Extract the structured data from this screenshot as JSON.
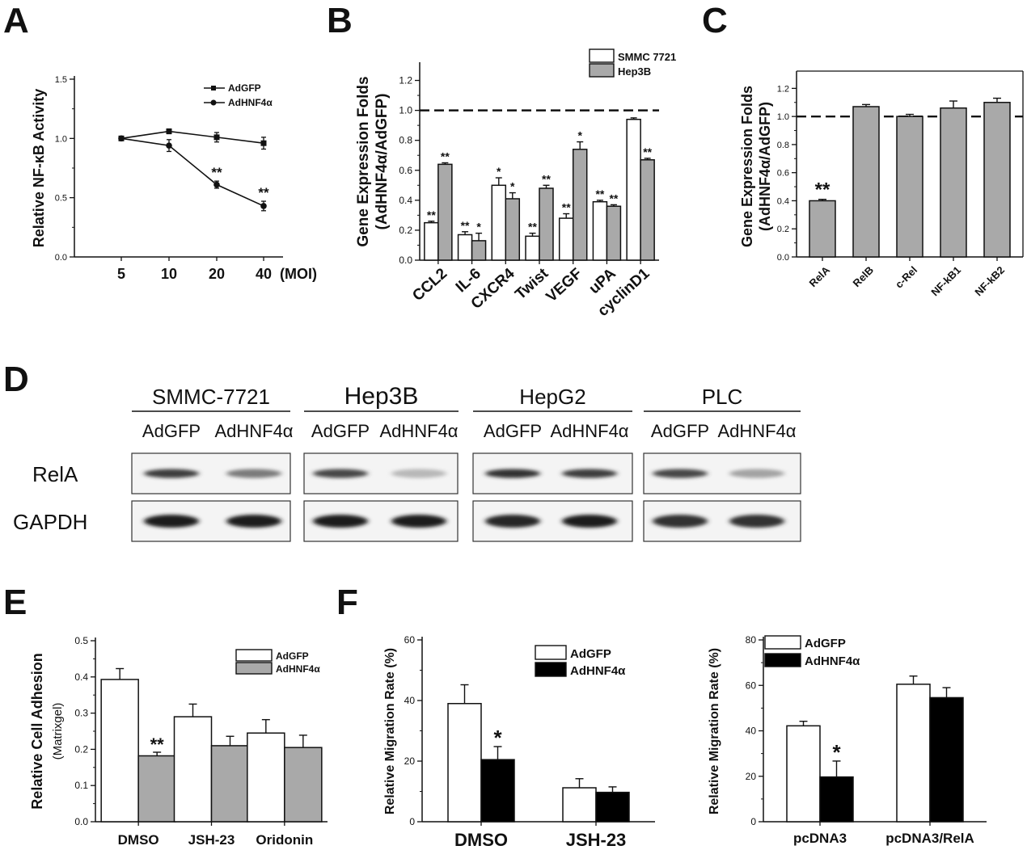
{
  "panel_labels": {
    "A": "A",
    "B": "B",
    "C": "C",
    "D": "D",
    "E": "E",
    "F": "F"
  },
  "chart_data": [
    {
      "panel": "A",
      "type": "line",
      "xlabel": "",
      "ylabel": "Relative NF-κB Activity",
      "x_unit": "(MOI)",
      "categories": [
        "5",
        "10",
        "20",
        "40"
      ],
      "yticks": [
        "0.0",
        "0.5",
        "1.0",
        "1.5"
      ],
      "ylim": [
        0,
        1.5
      ],
      "legend_position": "top-right",
      "series": [
        {
          "name": "AdGFP",
          "marker": "square",
          "values": [
            1.0,
            1.06,
            1.01,
            0.96
          ],
          "errors": [
            0.015,
            0.02,
            0.04,
            0.05
          ],
          "stars": [
            "",
            "",
            "",
            ""
          ]
        },
        {
          "name": "AdHNF4α",
          "marker": "circle",
          "values": [
            1.0,
            0.94,
            0.61,
            0.43
          ],
          "errors": [
            0.015,
            0.05,
            0.03,
            0.04
          ],
          "stars": [
            "",
            "",
            "**",
            "**"
          ]
        }
      ]
    },
    {
      "panel": "B",
      "type": "bar",
      "ylabel_line1": "Gene Expression Folds",
      "ylabel_line2": "(AdHNF4α/AdGFP)",
      "categories": [
        "CCL2",
        "IL-6",
        "CXCR4",
        "Twist",
        "VEGF",
        "uPA",
        "cyclinD1"
      ],
      "yticks": [
        "0.0",
        "0.2",
        "0.4",
        "0.6",
        "0.8",
        "1.0",
        "1.2"
      ],
      "ylim": [
        0,
        1.3
      ],
      "reference_line": 1.0,
      "legend_position": "top-right",
      "series": [
        {
          "name": "SMMC 7721",
          "color": "#ffffff",
          "values": [
            0.25,
            0.17,
            0.5,
            0.16,
            0.28,
            0.39,
            0.94
          ],
          "errors": [
            0.01,
            0.02,
            0.05,
            0.02,
            0.03,
            0.01,
            0.01
          ],
          "stars": [
            "**",
            "**",
            "*",
            "**",
            "**",
            "**",
            ""
          ]
        },
        {
          "name": "Hep3B",
          "color": "#a9a9a9",
          "values": [
            0.64,
            0.13,
            0.41,
            0.48,
            0.74,
            0.36,
            0.67
          ],
          "errors": [
            0.01,
            0.05,
            0.04,
            0.02,
            0.05,
            0.01,
            0.01
          ],
          "stars": [
            "**",
            "*",
            "*",
            "**",
            "*",
            "**",
            "**"
          ]
        }
      ]
    },
    {
      "panel": "C",
      "type": "bar",
      "ylabel_line1": "Gene Expression Folds",
      "ylabel_line2": "(AdHNF4α/AdGFP)",
      "categories": [
        "RelA",
        "RelB",
        "c-Rel",
        "NF-kB1",
        "NF-kB2"
      ],
      "yticks": [
        "0.0",
        "0.2",
        "0.4",
        "0.6",
        "0.8",
        "1.0",
        "1.2"
      ],
      "ylim": [
        0,
        1.3
      ],
      "reference_line": 1.0,
      "series": [
        {
          "name": "",
          "color": "#a9a9a9",
          "values": [
            0.4,
            1.07,
            1.0,
            1.06,
            1.1
          ],
          "errors": [
            0.01,
            0.015,
            0.015,
            0.05,
            0.03
          ],
          "stars": [
            "**",
            "",
            "",
            "",
            ""
          ]
        }
      ]
    },
    {
      "panel": "E",
      "type": "bar",
      "ylabel_line1": "Relative Cell Adhesion",
      "ylabel_line2": "(Matrixgel)",
      "categories": [
        "DMSO",
        "JSH-23",
        "Oridonin"
      ],
      "yticks": [
        "0.0",
        "0.1",
        "0.2",
        "0.3",
        "0.4",
        "0.5"
      ],
      "ylim": [
        0,
        0.5
      ],
      "legend_position": "top-right",
      "series": [
        {
          "name": "AdGFP",
          "color": "#ffffff",
          "values": [
            0.393,
            0.29,
            0.245
          ],
          "errors": [
            0.03,
            0.035,
            0.037
          ],
          "stars": [
            "",
            "",
            ""
          ]
        },
        {
          "name": "AdHNF4α",
          "color": "#a9a9a9",
          "values": [
            0.182,
            0.21,
            0.205
          ],
          "errors": [
            0.01,
            0.026,
            0.034
          ],
          "stars": [
            "**",
            "",
            ""
          ]
        }
      ]
    },
    {
      "panel": "F-left",
      "type": "bar",
      "ylabel": "Relative Migration Rate (%)",
      "categories": [
        "DMSO",
        "JSH-23"
      ],
      "yticks": [
        "0",
        "20",
        "40",
        "60"
      ],
      "ylim": [
        0,
        60
      ],
      "legend_position": "top-right",
      "series": [
        {
          "name": "AdGFP",
          "color": "#ffffff",
          "values": [
            39,
            11.2
          ],
          "errors": [
            6.2,
            3.0
          ],
          "stars": [
            "",
            ""
          ]
        },
        {
          "name": "AdHNF4α",
          "color": "#000000",
          "values": [
            20.5,
            9.7
          ],
          "errors": [
            4.3,
            1.8
          ],
          "stars": [
            "*",
            ""
          ]
        }
      ]
    },
    {
      "panel": "F-right",
      "type": "bar",
      "ylabel": "Relative Migration Rate (%)",
      "categories": [
        "pcDNA3",
        "pcDNA3/RelA"
      ],
      "yticks": [
        "0",
        "20",
        "40",
        "60",
        "80"
      ],
      "ylim": [
        0,
        80
      ],
      "legend_position": "top-left",
      "series": [
        {
          "name": "AdGFP",
          "color": "#ffffff",
          "values": [
            42.2,
            60.5
          ],
          "errors": [
            2.0,
            3.6
          ],
          "stars": [
            "",
            ""
          ]
        },
        {
          "name": "AdHNF4α",
          "color": "#000000",
          "values": [
            19.7,
            54.6
          ],
          "errors": [
            7.0,
            4.4
          ],
          "stars": [
            "*",
            ""
          ]
        }
      ]
    }
  ],
  "western_blot": {
    "cell_lines": [
      "SMMC-7721",
      "Hep3B",
      "HepG2",
      "PLC"
    ],
    "conditions": [
      "AdGFP",
      "AdHNF4α"
    ],
    "rows": [
      "RelA",
      "GAPDH"
    ],
    "band_intensity": {
      "RelA": [
        [
          0.85,
          0.55
        ],
        [
          0.8,
          0.25
        ],
        [
          0.9,
          0.85
        ],
        [
          0.8,
          0.35
        ]
      ],
      "GAPDH": [
        [
          1.0,
          1.0
        ],
        [
          1.0,
          1.0
        ],
        [
          0.95,
          1.0
        ],
        [
          0.9,
          0.9
        ]
      ]
    }
  }
}
